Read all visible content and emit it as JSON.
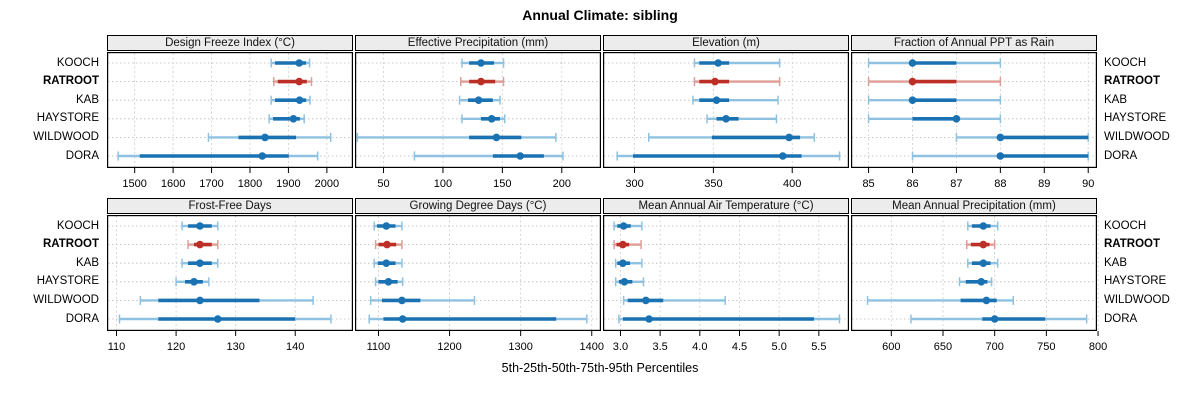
{
  "title": "Annual Climate: sibling",
  "footer": "5th-25th-50th-75th-95th Percentiles",
  "sites": [
    "KOOCH",
    "RATROOT",
    "KAB",
    "HAYSTORE",
    "WILDWOOD",
    "DORA"
  ],
  "highlight_site": "RATROOT",
  "colors": {
    "blue": "#1a72b2",
    "light_blue": "#8fc2e0",
    "red": "#bb2f26",
    "light_red": "#de9d96",
    "strip_bg": "#ececec",
    "gridline": "#cccccc",
    "guide": "#b8b8b8",
    "border": "#000000"
  },
  "chart_data": {
    "type": "dotplot-interval",
    "interval_style": "5-25-50-75-95 percentile bars: light outer segments with end caps, thick dark 25-75 segment, dot at median",
    "legend_position": "none",
    "grid": "dashed vertical at ticks, dotted horizontal per site row",
    "panels": [
      {
        "title": "Design Freeze Index (°C)",
        "xlim": [
          1428,
          2068
        ],
        "ticks": [
          1500,
          1600,
          1700,
          1800,
          1900,
          2000
        ],
        "decimals": 0,
        "rows": [
          [
            1855,
            1865,
            1928,
            1946,
            1955
          ],
          [
            1862,
            1872,
            1928,
            1948,
            1960
          ],
          [
            1855,
            1865,
            1929,
            1946,
            1956
          ],
          [
            1850,
            1860,
            1913,
            1930,
            1941
          ],
          [
            1692,
            1770,
            1839,
            1920,
            2010
          ],
          [
            1457,
            1513,
            1832,
            1901,
            1976
          ]
        ]
      },
      {
        "title": "Effective Precipitation (mm)",
        "xlim": [
          26,
          233
        ],
        "ticks": [
          50,
          100,
          150,
          200
        ],
        "decimals": 0,
        "rows": [
          [
            116,
            122,
            132,
            143,
            151
          ],
          [
            115,
            122,
            132,
            144,
            151
          ],
          [
            114,
            121,
            130,
            142,
            148
          ],
          [
            116,
            132,
            141,
            148,
            152
          ],
          [
            28,
            122,
            145,
            166,
            195
          ],
          [
            76,
            142,
            165,
            185,
            201
          ]
        ]
      },
      {
        "title": "Elevation (m)",
        "xlim": [
          280,
          436
        ],
        "ticks": [
          300,
          350,
          400
        ],
        "decimals": 0,
        "rows": [
          [
            338,
            341,
            353,
            360,
            392
          ],
          [
            338,
            341,
            351,
            360,
            392
          ],
          [
            337,
            341,
            352,
            360,
            391
          ],
          [
            346,
            352,
            358,
            366,
            390
          ],
          [
            309,
            349,
            398,
            405,
            414
          ],
          [
            289,
            299,
            394,
            406,
            430
          ]
        ]
      },
      {
        "title": "Fraction of Annual PPT as Rain",
        "xlim": [
          84.6,
          90.2
        ],
        "ticks": [
          85,
          86,
          87,
          88,
          89,
          90
        ],
        "decimals": 0,
        "rows": [
          [
            85,
            86,
            86,
            87,
            88
          ],
          [
            85,
            86,
            86,
            87,
            88
          ],
          [
            85,
            86,
            86,
            87,
            88
          ],
          [
            85,
            86,
            87,
            87,
            88
          ],
          [
            87,
            88,
            88,
            90,
            90
          ],
          [
            86,
            88,
            88,
            90,
            90
          ]
        ]
      },
      {
        "title": "Frost-Free Days",
        "xlim": [
          108.4,
          149.7
        ],
        "ticks": [
          110,
          120,
          130,
          140
        ],
        "decimals": 0,
        "rows": [
          [
            121,
            122,
            124,
            126,
            127
          ],
          [
            122,
            123,
            124,
            126,
            127
          ],
          [
            121,
            122,
            124,
            126,
            127
          ],
          [
            120,
            121.5,
            123,
            124.5,
            125.5
          ],
          [
            114,
            117,
            124,
            134,
            143
          ],
          [
            110.5,
            117,
            127,
            140,
            146
          ]
        ]
      },
      {
        "title": "Growing Degree Days (°C)",
        "xlim": [
          1067,
          1413
        ],
        "ticks": [
          1100,
          1200,
          1300,
          1400
        ],
        "decimals": 0,
        "rows": [
          [
            1094,
            1098,
            1111,
            1124,
            1133
          ],
          [
            1096,
            1100,
            1112,
            1125,
            1133
          ],
          [
            1094,
            1099,
            1111,
            1124,
            1133
          ],
          [
            1096,
            1100,
            1114,
            1127,
            1134
          ],
          [
            1089,
            1105,
            1133,
            1159,
            1235
          ],
          [
            1087,
            1107,
            1134,
            1350,
            1393
          ]
        ]
      },
      {
        "title": "Mean Annual Air Temperature (°C)",
        "xlim": [
          2.78,
          5.88
        ],
        "ticks": [
          3.0,
          3.5,
          4.0,
          4.5,
          5.0,
          5.5
        ],
        "decimals": 1,
        "rows": [
          [
            2.92,
            2.96,
            3.04,
            3.13,
            3.27
          ],
          [
            2.92,
            2.95,
            3.03,
            3.11,
            3.26
          ],
          [
            2.94,
            2.96,
            3.03,
            3.12,
            3.27
          ],
          [
            2.94,
            2.98,
            3.05,
            3.15,
            3.29
          ],
          [
            3.04,
            3.09,
            3.32,
            3.54,
            4.32
          ],
          [
            2.98,
            3.03,
            3.36,
            5.44,
            5.76
          ]
        ]
      },
      {
        "title": "Mean Annual Precipitation (mm)",
        "xlim": [
          561,
          799
        ],
        "ticks": [
          600,
          650,
          700,
          750,
          800
        ],
        "decimals": 0,
        "rows": [
          [
            674,
            678,
            689,
            696,
            703
          ],
          [
            673,
            677,
            689,
            695,
            700
          ],
          [
            674,
            678,
            689,
            696,
            703
          ],
          [
            666,
            672,
            687,
            693,
            697
          ],
          [
            577,
            667,
            692,
            702,
            718
          ],
          [
            619,
            688,
            700,
            749,
            789
          ]
        ]
      }
    ]
  }
}
